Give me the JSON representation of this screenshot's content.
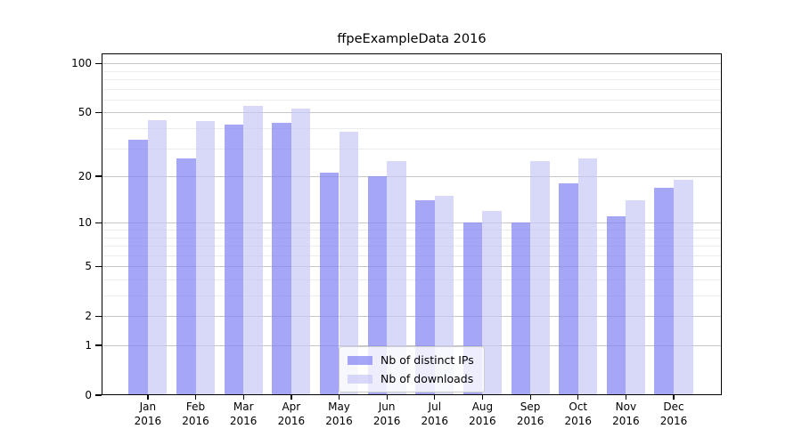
{
  "title": "ffpeExampleData 2016",
  "chart_data": {
    "type": "bar",
    "title": "ffpeExampleData 2016",
    "categories": [
      "Jan",
      "Feb",
      "Mar",
      "Apr",
      "May",
      "Jun",
      "Jul",
      "Aug",
      "Sep",
      "Oct",
      "Nov",
      "Dec"
    ],
    "year_label": "2016",
    "series": [
      {
        "name": "Nb of distinct IPs",
        "color": "rgba(133,133,244,0.73)",
        "values": [
          34,
          26,
          42,
          43,
          21,
          20,
          14,
          10,
          10,
          18,
          11,
          17
        ]
      },
      {
        "name": "Nb of downloads",
        "color": "rgba(198,198,246,0.68)",
        "values": [
          45,
          44,
          55,
          53,
          38,
          25,
          15,
          12,
          25,
          26,
          14,
          19
        ]
      }
    ],
    "yscale": "log10(value+1)",
    "yticks": [
      0,
      1,
      2,
      5,
      10,
      20,
      50,
      100
    ],
    "ylim": [
      0,
      115
    ],
    "xlabel": "",
    "ylabel": "",
    "grid": true,
    "legend_position": "lower center inside plot",
    "colors": {
      "background": "#ffffff",
      "grid_major": "#c6c6c6",
      "grid_minor": "#ececec",
      "axis": "#000000"
    }
  }
}
